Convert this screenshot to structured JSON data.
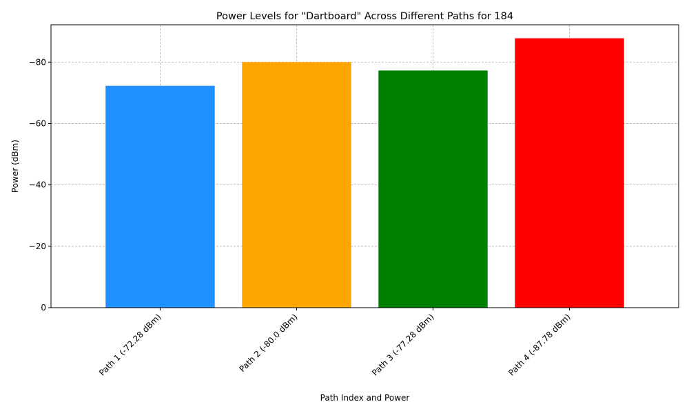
{
  "chart_data": {
    "type": "bar",
    "title": "Power Levels for \"Dartboard\" Across Different Paths for 184",
    "xlabel": "Path Index and Power",
    "ylabel": "Power (dBm)",
    "categories": [
      "Path 1 (-72.28 dBm)",
      "Path 2 (-80.0 dBm)",
      "Path 3 (-77.28 dBm)",
      "Path 4 (-87.78 dBm)"
    ],
    "values": [
      -72.28,
      -80.0,
      -77.28,
      -87.78
    ],
    "colors": [
      "#1e90ff",
      "#ffa500",
      "#008000",
      "#ff0000"
    ],
    "ylim": [
      0,
      -92.17
    ],
    "y_inverted": true,
    "yticks": [
      0,
      -20,
      -40,
      -60,
      -80
    ],
    "ytick_labels": [
      "0",
      "−20",
      "−40",
      "−60",
      "−80"
    ],
    "grid": true,
    "legend": "none"
  }
}
